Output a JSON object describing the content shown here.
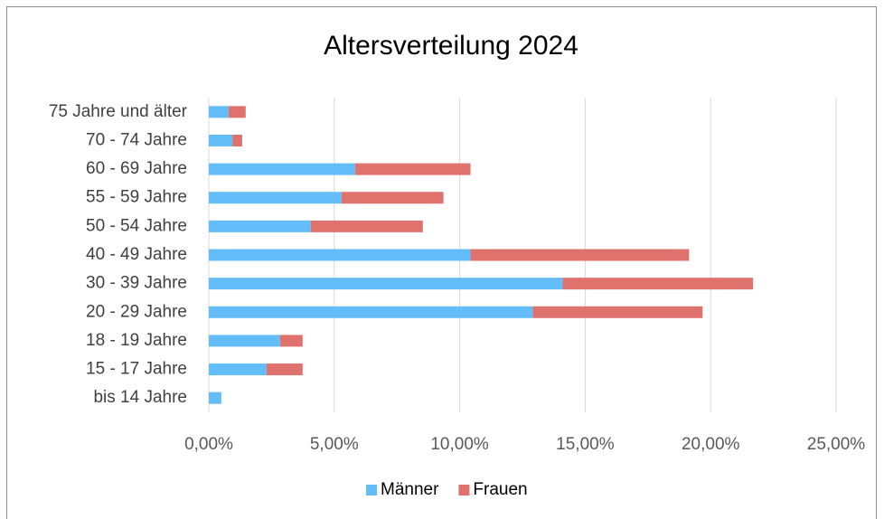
{
  "chart_data": {
    "type": "stacked_bar_horizontal",
    "title": "Altersverteilung 2024",
    "categories": [
      "75 Jahre und älter",
      "70 - 74 Jahre",
      "60 - 69 Jahre",
      "55 - 59 Jahre",
      "50 - 54 Jahre",
      "40 - 49 Jahre",
      "30 - 39 Jahre",
      "20 - 29 Jahre",
      "18 - 19 Jahre",
      "15 - 17 Jahre",
      "bis 14 Jahre"
    ],
    "series": [
      {
        "name": "Männer",
        "color": "#63bdf8",
        "values": [
          0.79,
          0.94,
          5.83,
          5.29,
          4.06,
          10.43,
          14.1,
          12.91,
          2.84,
          2.3,
          0.5
        ]
      },
      {
        "name": "Frauen",
        "color": "#e0726e",
        "values": [
          0.68,
          0.39,
          4.6,
          4.06,
          4.47,
          8.71,
          7.59,
          6.77,
          0.9,
          1.44,
          0
        ]
      }
    ],
    "xlim": [
      0,
      25
    ],
    "xticks": [
      {
        "value": 0,
        "label": "0,00%"
      },
      {
        "value": 5,
        "label": "5,00%"
      },
      {
        "value": 10,
        "label": "10,00%"
      },
      {
        "value": 15,
        "label": "15,00%"
      },
      {
        "value": 20,
        "label": "20,00%"
      },
      {
        "value": 25,
        "label": "25,00%"
      }
    ],
    "grid": true,
    "legend": "bottom"
  }
}
